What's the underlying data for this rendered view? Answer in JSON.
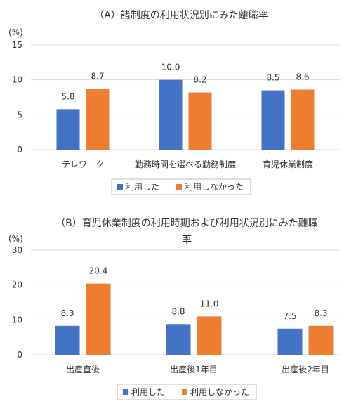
{
  "chart_data": [
    {
      "type": "bar",
      "title": "（A）諸制度の利用状況別にみた離職率",
      "unit_label": "(%)",
      "ylim": [
        0,
        15
      ],
      "yticks": [
        0,
        5,
        10,
        15
      ],
      "categories": [
        "テレワーク",
        "勤務時間を選べる勤務制度",
        "育児休業制度"
      ],
      "series": [
        {
          "name": "利用した",
          "color": "#4472c4",
          "values": [
            5.8,
            10.0,
            8.5
          ],
          "labels": [
            "5.8",
            "10.0",
            "8.5"
          ]
        },
        {
          "name": "利用しなかった",
          "color": "#ed7d31",
          "values": [
            8.7,
            8.2,
            8.6
          ],
          "labels": [
            "8.7",
            "8.2",
            "8.6"
          ]
        }
      ],
      "grid": true,
      "legend_position": "bottom"
    },
    {
      "type": "bar",
      "title": "（B）育児休業制度の利用時期および利用状況別にみた離職",
      "title_line2": "率",
      "unit_label": "(%)",
      "ylim": [
        0,
        30
      ],
      "yticks": [
        0,
        10,
        20,
        30
      ],
      "categories": [
        "出産直後",
        "出産後1年目",
        "出産後2年目"
      ],
      "series": [
        {
          "name": "利用した",
          "color": "#4472c4",
          "values": [
            8.3,
            8.8,
            7.5
          ],
          "labels": [
            "8.3",
            "8.8",
            "7.5"
          ]
        },
        {
          "name": "利用しなかった",
          "color": "#ed7d31",
          "values": [
            20.4,
            11.0,
            8.3
          ],
          "labels": [
            "20.4",
            "11.0",
            "8.3"
          ]
        }
      ],
      "grid": true,
      "legend_position": "bottom"
    }
  ]
}
